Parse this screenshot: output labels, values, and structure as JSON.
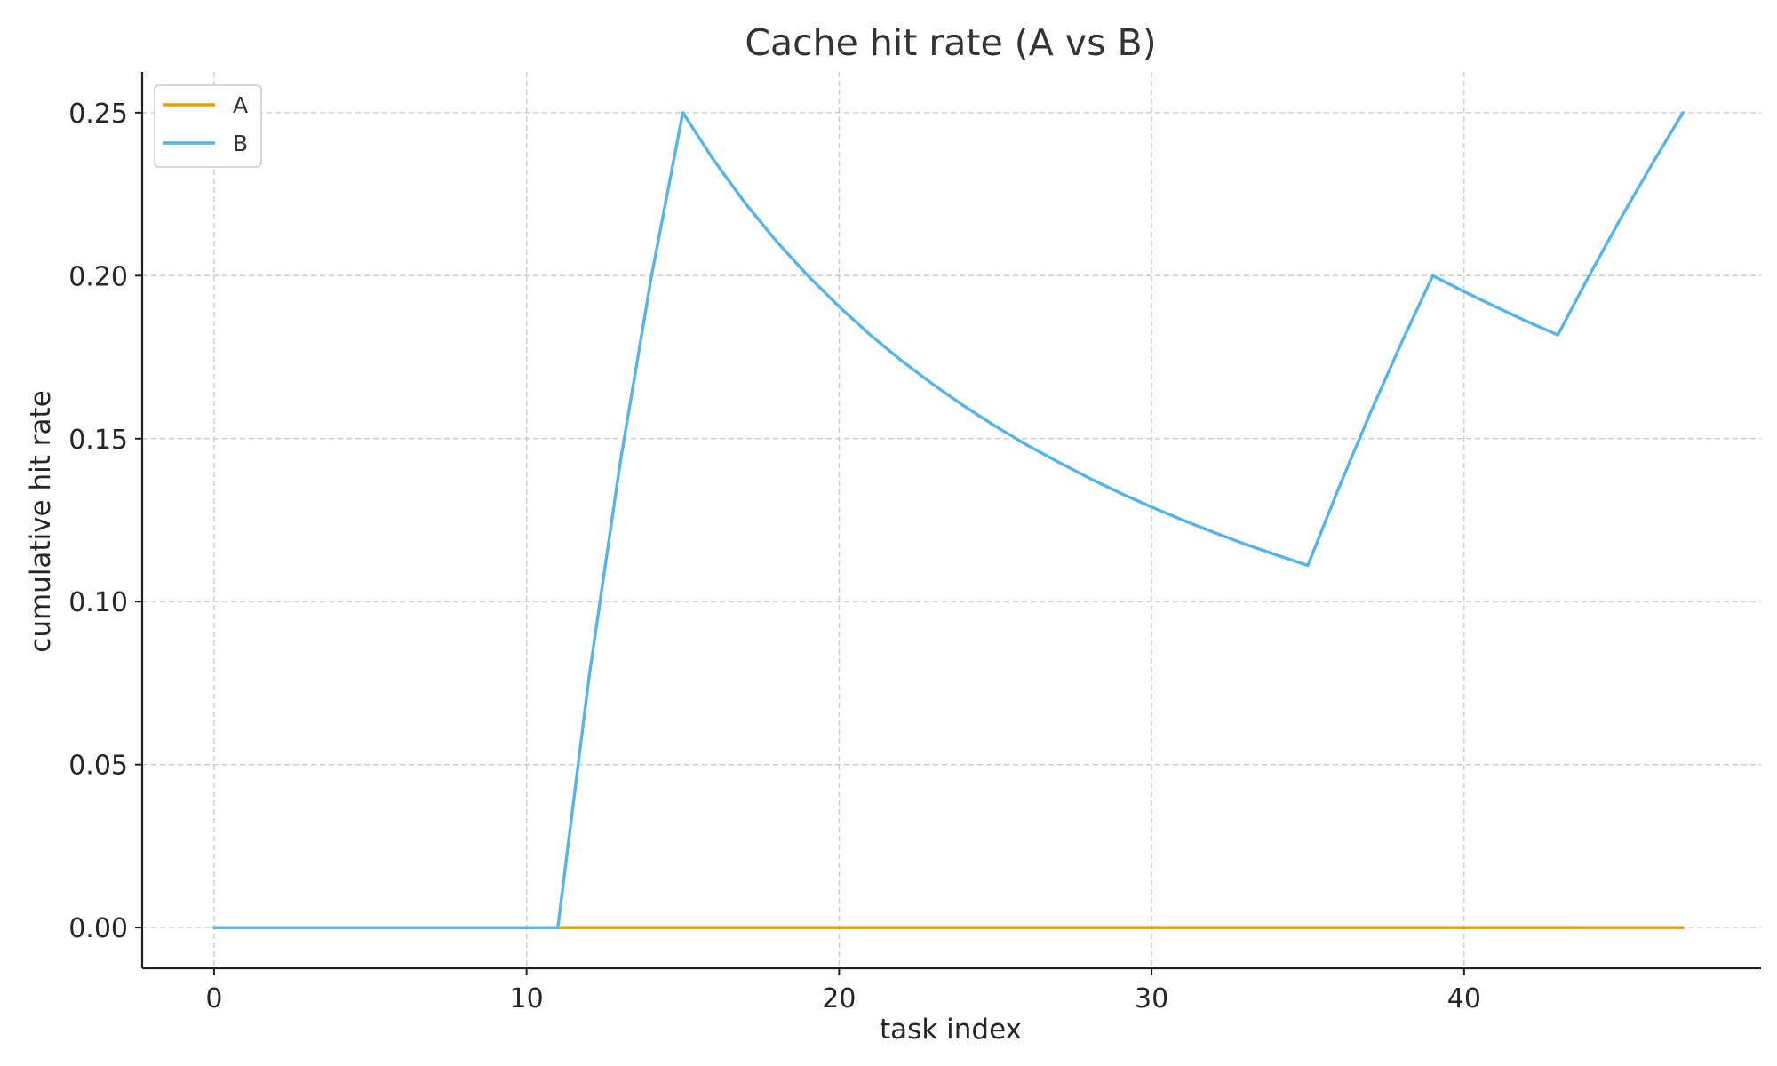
{
  "chart_data": {
    "type": "line",
    "title": "Cache hit rate (A vs B)",
    "xlabel": "task index",
    "ylabel": "cumulative hit rate",
    "xlim": [
      -2.3,
      49.5
    ],
    "ylim": [
      -0.0125,
      0.2625
    ],
    "xticks": [
      0,
      10,
      20,
      30,
      40
    ],
    "xtick_labels": [
      "0",
      "10",
      "20",
      "30",
      "40"
    ],
    "yticks": [
      0.0,
      0.05,
      0.1,
      0.15,
      0.2,
      0.25
    ],
    "ytick_labels": [
      "0.00",
      "0.05",
      "0.10",
      "0.15",
      "0.20",
      "0.25"
    ],
    "grid": true,
    "legend_position": "top-left",
    "series": [
      {
        "name": "A",
        "color": "#E69F00",
        "x": [
          0,
          1,
          2,
          3,
          4,
          5,
          6,
          7,
          8,
          9,
          10,
          11,
          12,
          13,
          14,
          15,
          16,
          17,
          18,
          19,
          20,
          21,
          22,
          23,
          24,
          25,
          26,
          27,
          28,
          29,
          30,
          31,
          32,
          33,
          34,
          35,
          36,
          37,
          38,
          39,
          40,
          41,
          42,
          43,
          44,
          45,
          46,
          47
        ],
        "values": [
          0,
          0,
          0,
          0,
          0,
          0,
          0,
          0,
          0,
          0,
          0,
          0,
          0,
          0,
          0,
          0,
          0,
          0,
          0,
          0,
          0,
          0,
          0,
          0,
          0,
          0,
          0,
          0,
          0,
          0,
          0,
          0,
          0,
          0,
          0,
          0,
          0,
          0,
          0,
          0,
          0,
          0,
          0,
          0,
          0,
          0,
          0,
          0
        ]
      },
      {
        "name": "B",
        "color": "#56B4E9",
        "x": [
          0,
          1,
          2,
          3,
          4,
          5,
          6,
          7,
          8,
          9,
          10,
          11,
          12,
          13,
          14,
          15,
          16,
          17,
          18,
          19,
          20,
          21,
          22,
          23,
          24,
          25,
          26,
          27,
          28,
          29,
          30,
          31,
          32,
          33,
          34,
          35,
          36,
          37,
          38,
          39,
          40,
          41,
          42,
          43,
          44,
          45,
          46,
          47
        ],
        "values": [
          0,
          0,
          0,
          0,
          0,
          0,
          0,
          0,
          0,
          0,
          0,
          0,
          0.0769,
          0.1429,
          0.2,
          0.25,
          0.2353,
          0.2222,
          0.2105,
          0.2,
          0.1905,
          0.1818,
          0.1739,
          0.1667,
          0.16,
          0.1538,
          0.1481,
          0.1429,
          0.1379,
          0.1333,
          0.129,
          0.125,
          0.1212,
          0.1176,
          0.1143,
          0.1111,
          0.1351,
          0.1579,
          0.1795,
          0.2,
          0.1951,
          0.1905,
          0.186,
          0.1818,
          0.2,
          0.2174,
          0.234,
          0.25
        ]
      }
    ]
  }
}
